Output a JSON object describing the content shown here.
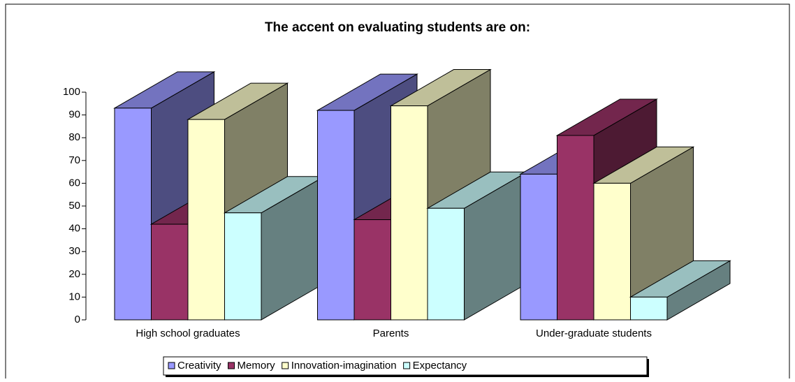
{
  "chart_data": {
    "type": "bar3d",
    "title": "The accent on evaluating students are on:",
    "categories": [
      "High school graduates",
      "Parents",
      "Under-graduate students"
    ],
    "series": [
      {
        "name": "Creativity",
        "color": "#9999ff",
        "values": [
          93,
          92,
          64
        ]
      },
      {
        "name": "Memory",
        "color": "#993366",
        "values": [
          42,
          44,
          81
        ]
      },
      {
        "name": "Innovation-imagination",
        "color": "#ffffcc",
        "values": [
          88,
          94,
          60
        ]
      },
      {
        "name": "Expectancy",
        "color": "#ccffff",
        "values": [
          47,
          49,
          10
        ]
      }
    ],
    "ylim": [
      0,
      100
    ],
    "yticks": [
      0,
      10,
      20,
      30,
      40,
      50,
      60,
      70,
      80,
      90,
      100
    ],
    "legend": "bottom"
  }
}
